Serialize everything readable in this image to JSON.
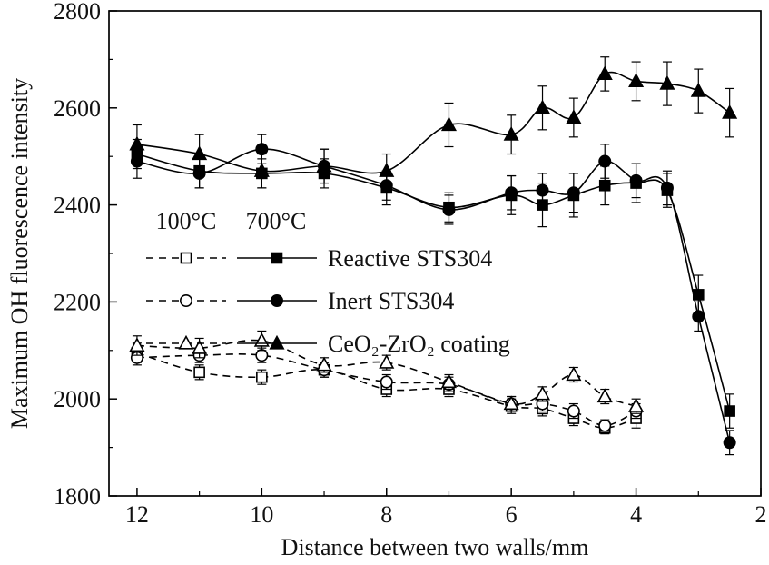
{
  "chart_data": {
    "type": "line",
    "title": "",
    "xlabel": "Distance between two walls/mm",
    "ylabel": "Maximum OH fluorescence intensity",
    "x_axis": {
      "min": 2,
      "max": 12.45,
      "reversed": true,
      "major_ticks": [
        12,
        10,
        8,
        6,
        4,
        2
      ],
      "minor_ticks": [
        11,
        9,
        7,
        5,
        3
      ]
    },
    "y_axis": {
      "min": 1800,
      "max": 2800,
      "major_ticks": [
        1800,
        2000,
        2200,
        2400,
        2600,
        2800
      ],
      "minor_ticks": [
        1900,
        2100,
        2300,
        2500,
        2700
      ]
    },
    "legend": {
      "col1_header": "100°C",
      "col2_header": "700°C",
      "rows": [
        {
          "label": "Reactive STS304",
          "marker": "square"
        },
        {
          "label": "Inert STS304",
          "marker": "circle"
        },
        {
          "label": "CeO₂-ZrO₂ coating",
          "marker": "triangle"
        }
      ]
    },
    "series": [
      {
        "name": "100°C Reactive STS304",
        "marker": "square",
        "fill": "open",
        "line": "dashed",
        "x": [
          12,
          11,
          10,
          9,
          8,
          7,
          6,
          5.5,
          5,
          4.5,
          4
        ],
        "y": [
          2095,
          2055,
          2045,
          2060,
          2020,
          2020,
          1985,
          1980,
          1960,
          1940,
          1960
        ],
        "err": [
          20,
          15,
          15,
          15,
          15,
          15,
          15,
          15,
          15,
          12,
          20
        ]
      },
      {
        "name": "100°C Inert STS304",
        "marker": "circle",
        "fill": "open",
        "line": "dashed",
        "x": [
          12,
          11,
          10,
          9,
          8,
          7,
          6,
          5.5,
          5,
          4.5,
          4
        ],
        "y": [
          2085,
          2090,
          2090,
          2060,
          2035,
          2030,
          1990,
          1990,
          1975,
          1945,
          1975
        ],
        "err": [
          15,
          15,
          15,
          15,
          15,
          15,
          15,
          15,
          15,
          12,
          15
        ]
      },
      {
        "name": "100°C CeO₂-ZrO₂ coating",
        "marker": "triangle",
        "fill": "open",
        "line": "dashed",
        "x": [
          12,
          11,
          10,
          9,
          8,
          7,
          6,
          5.5,
          5,
          4.5,
          4
        ],
        "y": [
          2110,
          2105,
          2120,
          2070,
          2075,
          2035,
          1990,
          2010,
          2050,
          2005,
          1985
        ],
        "err": [
          20,
          20,
          20,
          15,
          15,
          15,
          15,
          15,
          15,
          15,
          15
        ]
      },
      {
        "name": "700°C Reactive STS304",
        "marker": "square",
        "fill": "filled",
        "line": "solid",
        "x": [
          12,
          11,
          10,
          9,
          8,
          7,
          6,
          5.5,
          5,
          4.5,
          4,
          3.5,
          3,
          2.5
        ],
        "y": [
          2505,
          2470,
          2465,
          2465,
          2435,
          2395,
          2420,
          2400,
          2420,
          2440,
          2445,
          2430,
          2215,
          1975
        ],
        "err": [
          30,
          35,
          30,
          30,
          35,
          30,
          40,
          45,
          45,
          40,
          40,
          35,
          40,
          35
        ]
      },
      {
        "name": "700°C Inert STS304",
        "marker": "circle",
        "fill": "filled",
        "line": "solid",
        "x": [
          12,
          11,
          10,
          9,
          8,
          7,
          6,
          5.5,
          5,
          4.5,
          4,
          3.5,
          3,
          2.5
        ],
        "y": [
          2490,
          2465,
          2515,
          2480,
          2440,
          2390,
          2425,
          2430,
          2425,
          2490,
          2450,
          2435,
          2170,
          1910
        ],
        "err": [
          35,
          30,
          30,
          35,
          30,
          30,
          35,
          35,
          40,
          35,
          35,
          35,
          30,
          25
        ]
      },
      {
        "name": "700°C CeO₂-ZrO₂ coating",
        "marker": "triangle",
        "fill": "filled",
        "line": "solid",
        "x": [
          12,
          11,
          10,
          9,
          8,
          7,
          6,
          5.5,
          5,
          4.5,
          4,
          3.5,
          3,
          2.5
        ],
        "y": [
          2525,
          2505,
          2470,
          2480,
          2470,
          2565,
          2545,
          2600,
          2580,
          2670,
          2655,
          2650,
          2635,
          2590
        ],
        "err": [
          40,
          40,
          35,
          35,
          35,
          45,
          40,
          45,
          40,
          35,
          40,
          45,
          45,
          50
        ]
      }
    ],
    "colors": {
      "ink": "#000000",
      "background": "#ffffff"
    }
  }
}
